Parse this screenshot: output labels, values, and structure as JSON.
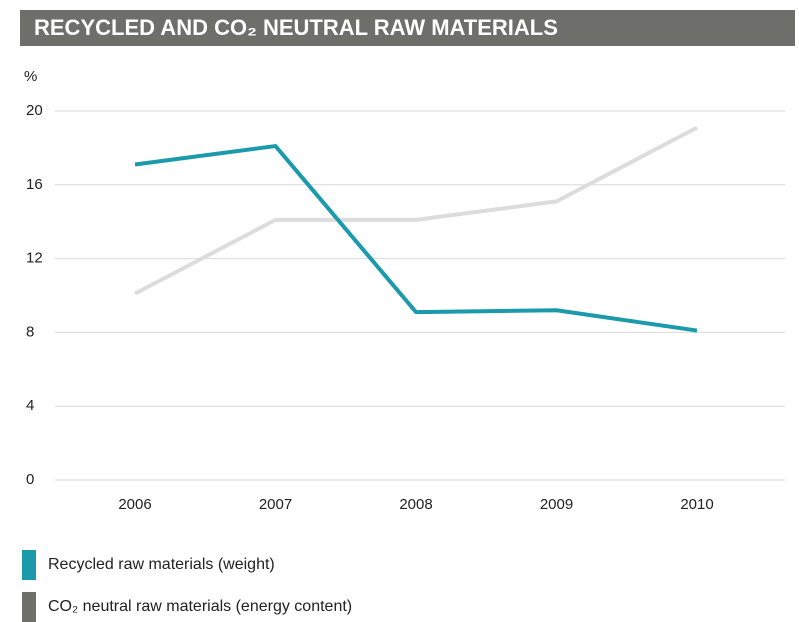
{
  "chart_data": {
    "type": "line",
    "title": "RECYCLED AND CO₂ NEUTRAL RAW MATERIALS",
    "y_label": "%",
    "categories": [
      "2006",
      "2007",
      "2008",
      "2009",
      "2010"
    ],
    "series": [
      {
        "name": "Recycled raw materials (weight)",
        "color": "#1a9aab",
        "swatch_color": "#1a9aab",
        "values": [
          17.1,
          18.1,
          9.1,
          9.2,
          8.1
        ]
      },
      {
        "name": "CO₂ neutral raw materials (energy content)",
        "color": "#dcdcdc",
        "swatch_color": "#6e6f6b",
        "values": [
          10.1,
          14.1,
          14.1,
          15.1,
          19.1
        ]
      }
    ],
    "ylim": [
      0,
      20
    ],
    "yticks": [
      0,
      4,
      8,
      12,
      16,
      20
    ],
    "grid": true
  }
}
